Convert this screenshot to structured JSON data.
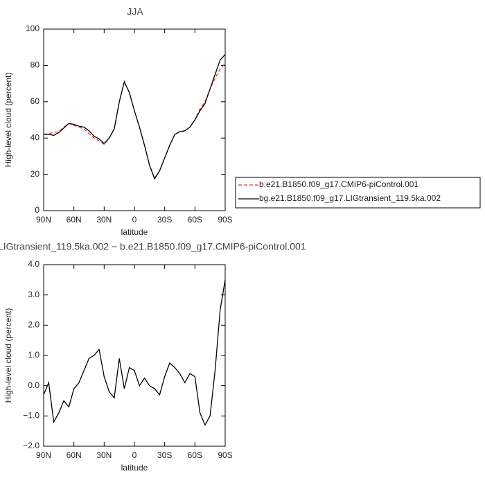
{
  "chart_data": [
    {
      "type": "line",
      "title": "JJA",
      "x_label": "latitude",
      "y_label": "High-level cloud (percent)",
      "x": [
        90,
        85,
        80,
        75,
        70,
        65,
        60,
        55,
        50,
        45,
        40,
        35,
        30,
        25,
        20,
        15,
        10,
        5,
        0,
        -5,
        -10,
        -15,
        -20,
        -25,
        -30,
        -35,
        -40,
        -45,
        -50,
        -55,
        -60,
        -65,
        -70,
        -75,
        -80,
        -85,
        -90
      ],
      "xlim": [
        90,
        -90
      ],
      "xticks": [
        {
          "value": 90,
          "label": "90N"
        },
        {
          "value": 60,
          "label": "60N"
        },
        {
          "value": 30,
          "label": "30N"
        },
        0,
        {
          "value": -30,
          "label": "30S"
        },
        {
          "value": -60,
          "label": "60S"
        },
        {
          "value": -90,
          "label": "90S"
        }
      ],
      "ylim": [
        0,
        100
      ],
      "yticks": [
        0,
        20,
        40,
        60,
        80,
        100
      ],
      "series": [
        {
          "name": "b.e21.B1850.f09_g17.CMIP6-piControl.001",
          "color": "#e8303a",
          "style": "dashed",
          "values": [
            42,
            42.5,
            43,
            43.5,
            46,
            48,
            47,
            46,
            45,
            42.5,
            40,
            38.5,
            36.5,
            40,
            45,
            60,
            71,
            65,
            55,
            46,
            36,
            25,
            18,
            22,
            29,
            36,
            42,
            43.5,
            44,
            46,
            50,
            56,
            60,
            67,
            73,
            78,
            81
          ]
        },
        {
          "name": "bg.e21.B1850.f09_g17.LIGtransient_119.5ka.002",
          "color": "#000000",
          "style": "solid",
          "values": [
            42,
            42,
            41.5,
            43,
            45.5,
            48,
            47.5,
            46.5,
            46,
            44,
            41,
            39.5,
            37,
            40,
            45,
            60,
            71,
            65,
            55,
            46,
            36,
            25,
            17.5,
            22,
            29,
            36,
            42,
            43.5,
            44,
            46,
            50,
            55,
            59,
            67,
            75,
            83,
            86
          ]
        }
      ]
    },
    {
      "type": "line",
      "title": "LIGtransient_119.5ka.002 − b.e21.B1850.f09_g17.CMIP6-piControl.001",
      "x_label": "latitude",
      "y_label": "High-level cloud (percent)",
      "x": [
        90,
        85,
        80,
        75,
        70,
        65,
        60,
        55,
        50,
        45,
        40,
        35,
        30,
        25,
        20,
        15,
        10,
        5,
        0,
        -5,
        -10,
        -15,
        -20,
        -25,
        -30,
        -35,
        -40,
        -45,
        -50,
        -55,
        -60,
        -65,
        -70,
        -75,
        -80,
        -85,
        -90
      ],
      "xlim": [
        90,
        -90
      ],
      "xticks": [
        {
          "value": 90,
          "label": "90N"
        },
        {
          "value": 60,
          "label": "60N"
        },
        {
          "value": 30,
          "label": "30N"
        },
        0,
        {
          "value": -30,
          "label": "30S"
        },
        {
          "value": -60,
          "label": "60S"
        },
        {
          "value": -90,
          "label": "90S"
        }
      ],
      "ylim": [
        -2,
        4
      ],
      "yticks": [
        {
          "value": -2,
          "label": "−2.0"
        },
        {
          "value": -1,
          "label": "−1.0"
        },
        {
          "value": 0,
          "label": "0.0"
        },
        {
          "value": 1,
          "label": "1.0"
        },
        {
          "value": 2,
          "label": "2.0"
        },
        {
          "value": 3,
          "label": "3.0"
        },
        {
          "value": 4,
          "label": "4.0"
        }
      ],
      "series": [
        {
          "color": "#000000",
          "style": "solid",
          "values": [
            -0.3,
            0.1,
            -1.2,
            -0.9,
            -0.5,
            -0.7,
            -0.1,
            0.1,
            0.5,
            0.9,
            1.0,
            1.2,
            0.3,
            -0.2,
            -0.4,
            0.9,
            -0.1,
            0.6,
            0.5,
            0.0,
            0.25,
            0.0,
            -0.1,
            -0.3,
            0.3,
            0.75,
            0.6,
            0.4,
            0.1,
            0.4,
            0.3,
            -0.9,
            -1.3,
            -1.0,
            0.5,
            2.5,
            3.5
          ]
        }
      ]
    }
  ]
}
